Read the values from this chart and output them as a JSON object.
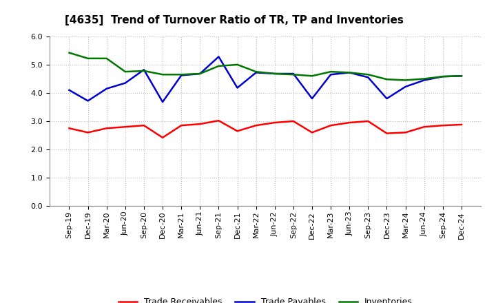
{
  "title": "[4635]  Trend of Turnover Ratio of TR, TP and Inventories",
  "x_labels": [
    "Sep-19",
    "Dec-19",
    "Mar-20",
    "Jun-20",
    "Sep-20",
    "Dec-20",
    "Mar-21",
    "Jun-21",
    "Sep-21",
    "Dec-21",
    "Mar-22",
    "Jun-22",
    "Sep-22",
    "Dec-22",
    "Mar-23",
    "Jun-23",
    "Sep-23",
    "Dec-23",
    "Mar-24",
    "Jun-24",
    "Sep-24",
    "Dec-24"
  ],
  "trade_receivables": [
    2.75,
    2.6,
    2.75,
    2.8,
    2.85,
    2.42,
    2.85,
    2.9,
    3.02,
    2.65,
    2.85,
    2.95,
    3.0,
    2.6,
    2.85,
    2.95,
    3.0,
    2.57,
    2.6,
    2.8,
    2.85,
    2.88
  ],
  "trade_payables": [
    4.1,
    3.72,
    4.15,
    4.35,
    4.82,
    3.68,
    4.62,
    4.68,
    5.28,
    4.18,
    4.72,
    4.68,
    4.68,
    3.8,
    4.65,
    4.72,
    4.55,
    3.8,
    4.22,
    4.45,
    4.58,
    4.6
  ],
  "inventories": [
    5.42,
    5.22,
    5.22,
    4.75,
    4.78,
    4.65,
    4.65,
    4.68,
    4.95,
    5.0,
    4.75,
    4.68,
    4.65,
    4.6,
    4.75,
    4.72,
    4.65,
    4.48,
    4.45,
    4.5,
    4.58,
    4.6
  ],
  "ylim": [
    0.0,
    6.0
  ],
  "yticks": [
    0.0,
    1.0,
    2.0,
    3.0,
    4.0,
    5.0,
    6.0
  ],
  "color_receivables": "#ff0000",
  "color_payables": "#0000cc",
  "color_inventories": "#007700",
  "legend_labels": [
    "Trade Receivables",
    "Trade Payables",
    "Inventories"
  ],
  "background_color": "#ffffff",
  "grid_color": "#bbbbbb",
  "title_fontsize": 11,
  "tick_fontsize": 8,
  "linewidth": 1.8
}
